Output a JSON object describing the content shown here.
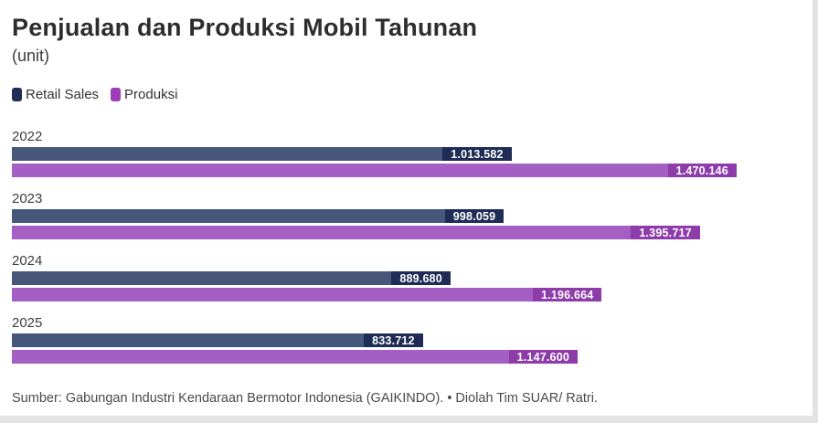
{
  "header": {
    "title": "Penjualan dan Produksi Mobil Tahunan",
    "subtitle": "(unit)"
  },
  "legend": [
    {
      "label": "Retail Sales",
      "color": "#1f2c55"
    },
    {
      "label": "Produksi",
      "color": "#9c3eb8"
    }
  ],
  "colors": {
    "retail_bar": "#46577a",
    "retail_chip": "#1f2c55",
    "produksi_bar": "#a55ec3",
    "produksi_chip": "#8d3caa",
    "frame_border": "#e3e3e3",
    "title_text": "#2d2d2d",
    "body_text": "#3d3d3d",
    "footer_text": "#4a4a4a",
    "value_text": "#ffffff"
  },
  "chart_data": {
    "type": "bar",
    "orientation": "horizontal",
    "title": "Penjualan dan Produksi Mobil Tahunan",
    "xlabel": "(unit)",
    "ylabel": "",
    "grid": false,
    "legend_position": "top-left",
    "axis_max": 1600000,
    "categories": [
      "2022",
      "2023",
      "2024",
      "2025"
    ],
    "series": [
      {
        "name": "Retail Sales",
        "values": [
          1013582,
          998059,
          889680,
          833712
        ],
        "labels": [
          "1.013.582",
          "998.059",
          "889.680",
          "833.712"
        ]
      },
      {
        "name": "Produksi",
        "values": [
          1470146,
          1395717,
          1196664,
          1147600
        ],
        "labels": [
          "1.470.146",
          "1.395.717",
          "1.196.664",
          "1.147.600"
        ]
      }
    ]
  },
  "footer": {
    "source": "Sumber: Gabungan Industri Kendaraan Bermotor Indonesia (GAIKINDO). • Diolah Tim SUAR/ Ratri."
  }
}
